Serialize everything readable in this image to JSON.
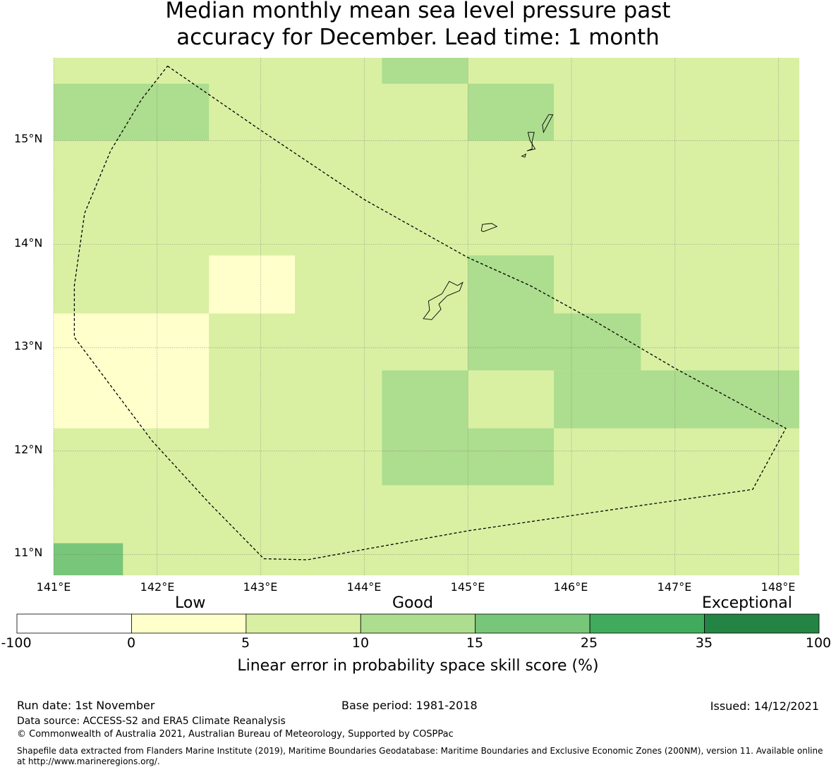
{
  "title": {
    "line1": "Median monthly mean sea level pressure past",
    "line2": "accuracy for December. Lead time: 1 month"
  },
  "map": {
    "lon_range": [
      141.0,
      148.2
    ],
    "lat_range": [
      10.8,
      15.8
    ],
    "lat_ticks": [
      "15°N",
      "14°N",
      "13°N",
      "12°N",
      "11°N"
    ],
    "lon_ticks": [
      "141°E",
      "142°E",
      "143°E",
      "144°E",
      "145°E",
      "146°E",
      "147°E",
      "148°E"
    ],
    "grid_cells": [
      {
        "lon": [
          144.17,
          145.0
        ],
        "lat": [
          15.55,
          15.8
        ],
        "category": "10-15"
      },
      {
        "lon": [
          141.0,
          142.5
        ],
        "lat": [
          15.0,
          15.55
        ],
        "category": "10-15"
      },
      {
        "lon": [
          145.0,
          145.83
        ],
        "lat": [
          15.0,
          15.55
        ],
        "category": "10-15"
      },
      {
        "lon": [
          142.5,
          143.33
        ],
        "lat": [
          13.33,
          13.89
        ],
        "category": "0-5"
      },
      {
        "lon": [
          145.0,
          145.83
        ],
        "lat": [
          12.78,
          13.89
        ],
        "category": "10-15"
      },
      {
        "lon": [
          145.83,
          146.67
        ],
        "lat": [
          12.78,
          13.33
        ],
        "category": "10-15"
      },
      {
        "lon": [
          141.0,
          142.5
        ],
        "lat": [
          12.22,
          13.33
        ],
        "category": "0-5"
      },
      {
        "lon": [
          144.17,
          145.0
        ],
        "lat": [
          11.67,
          12.78
        ],
        "category": "10-15"
      },
      {
        "lon": [
          145.0,
          145.83
        ],
        "lat": [
          11.67,
          12.22
        ],
        "category": "10-15"
      },
      {
        "lon": [
          145.83,
          148.2
        ],
        "lat": [
          12.22,
          12.78
        ],
        "category": "10-15"
      },
      {
        "lon": [
          141.0,
          141.67
        ],
        "lat": [
          10.8,
          11.11
        ],
        "category": "15-25"
      }
    ],
    "default_category": "5-10",
    "eez_boundary": [
      [
        142.1,
        15.72
      ],
      [
        143.0,
        15.1
      ],
      [
        144.0,
        14.43
      ],
      [
        145.0,
        13.87
      ],
      [
        145.6,
        13.6
      ],
      [
        146.2,
        13.27
      ],
      [
        147.0,
        12.8
      ],
      [
        148.07,
        12.22
      ],
      [
        147.75,
        11.63
      ],
      [
        146.5,
        11.45
      ],
      [
        145.0,
        11.23
      ],
      [
        144.0,
        11.05
      ],
      [
        143.45,
        10.95
      ],
      [
        143.03,
        10.96
      ],
      [
        142.5,
        11.5
      ],
      [
        141.95,
        12.1
      ],
      [
        141.35,
        12.9
      ],
      [
        141.2,
        13.1
      ],
      [
        141.2,
        13.6
      ],
      [
        141.3,
        14.3
      ],
      [
        141.55,
        14.9
      ],
      [
        141.85,
        15.4
      ],
      [
        142.1,
        15.72
      ]
    ],
    "islands": [
      [
        [
          144.9,
          13.6
        ],
        [
          144.95,
          13.63
        ],
        [
          144.92,
          13.55
        ],
        [
          144.8,
          13.5
        ],
        [
          144.72,
          13.42
        ],
        [
          144.74,
          13.37
        ],
        [
          144.65,
          13.27
        ],
        [
          144.57,
          13.28
        ],
        [
          144.63,
          13.36
        ],
        [
          144.62,
          13.45
        ],
        [
          144.75,
          13.52
        ],
        [
          144.82,
          13.64
        ],
        [
          144.9,
          13.6
        ]
      ],
      [
        [
          145.15,
          14.12
        ],
        [
          145.28,
          14.17
        ],
        [
          145.23,
          14.2
        ],
        [
          145.14,
          14.19
        ],
        [
          145.13,
          14.13
        ],
        [
          145.15,
          14.12
        ]
      ],
      [
        [
          145.57,
          14.9
        ],
        [
          145.65,
          14.92
        ],
        [
          145.6,
          15.0
        ],
        [
          145.58,
          15.08
        ],
        [
          145.64,
          15.08
        ],
        [
          145.62,
          14.99
        ],
        [
          145.62,
          14.92
        ],
        [
          145.57,
          14.9
        ]
      ],
      [
        [
          145.73,
          15.08
        ],
        [
          145.82,
          15.25
        ],
        [
          145.78,
          15.25
        ],
        [
          145.72,
          15.15
        ],
        [
          145.73,
          15.08
        ]
      ],
      [
        [
          145.52,
          14.85
        ],
        [
          145.56,
          14.87
        ],
        [
          145.55,
          14.84
        ],
        [
          145.52,
          14.85
        ]
      ]
    ]
  },
  "legend": {
    "categories": [
      {
        "name": "Low",
        "position": "left"
      },
      {
        "name": "Good",
        "position": "center"
      },
      {
        "name": "Exceptional",
        "position": "right"
      }
    ],
    "bins": [
      {
        "range": "-100-0",
        "color": "#ffffff"
      },
      {
        "range": "0-5",
        "color": "#ffffcc"
      },
      {
        "range": "5-10",
        "color": "#d9f0a3"
      },
      {
        "range": "10-15",
        "color": "#addd8e"
      },
      {
        "range": "15-25",
        "color": "#78c679"
      },
      {
        "range": "25-35",
        "color": "#41ab5d"
      },
      {
        "range": "35-100",
        "color": "#238443"
      }
    ],
    "ticks": [
      "-100",
      "0",
      "5",
      "10",
      "15",
      "25",
      "35",
      "100"
    ],
    "label": "Linear error in probability space skill score (%)"
  },
  "footer": {
    "run_date": "Run date: 1st November",
    "base_period": "Base period: 1981-2018",
    "issued": "Issued: 14/12/2021",
    "data_source": "Data source: ACCESS-S2 and ERA5 Climate Reanalysis",
    "copyright": "© Commonwealth of Australia 2021, Australian Bureau of Meteorology, Supported by COSPPac",
    "shapefile_line1": "Shapefile data extracted from Flanders Marine Institute (2019), Maritime Boundaries Geodatabase: Maritime Boundaries and Exclusive Economic Zones (200NM), version 11. Available online",
    "shapefile_line2": "at http://www.marineregions.org/."
  }
}
